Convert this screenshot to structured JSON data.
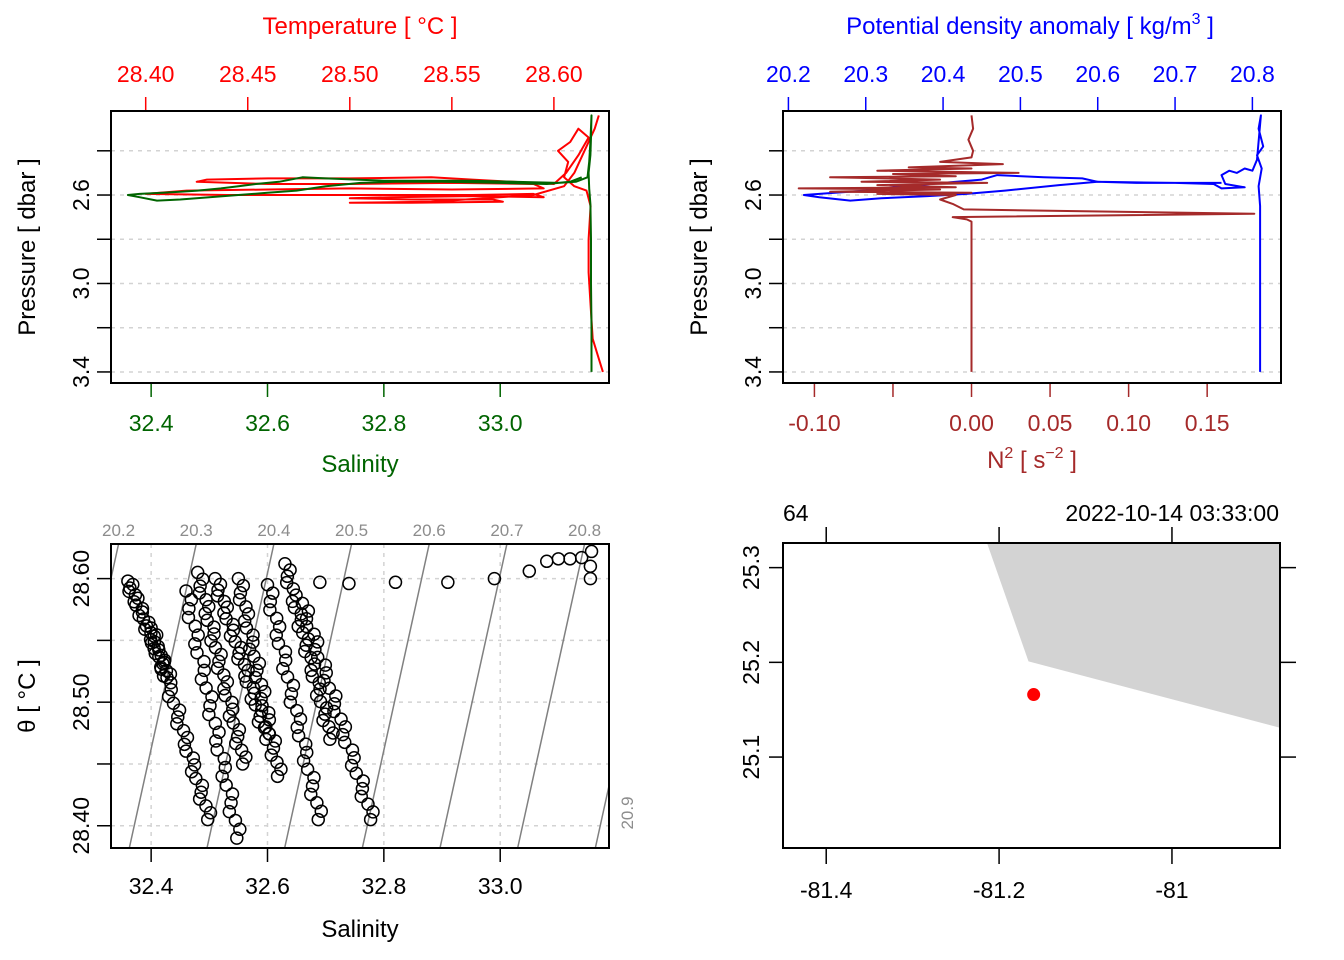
{
  "chart_data": [
    {
      "id": "profile-ts",
      "type": "line",
      "title": "",
      "ylabel": "Pressure [ dbar ]",
      "ylim": [
        3.45,
        2.22
      ],
      "y_ticks": [
        2.4,
        2.6,
        2.8,
        3.0,
        3.2,
        3.4
      ],
      "y_tick_labels": [
        "",
        "2.6",
        "",
        "3.0",
        "",
        "3.4"
      ],
      "grid": true,
      "top_axis": {
        "label": "Temperature [ °C ]",
        "color": "#ff0000",
        "lim": [
          28.383,
          28.627
        ],
        "ticks": [
          28.4,
          28.45,
          28.5,
          28.55,
          28.6
        ],
        "tick_labels": [
          "28.40",
          "28.45",
          "28.50",
          "28.55",
          "28.60"
        ]
      },
      "bottom_axis": {
        "label": "Salinity",
        "color": "#006400",
        "lim": [
          32.331,
          33.187
        ],
        "ticks": [
          32.4,
          32.6,
          32.8,
          33.0
        ],
        "tick_labels": [
          "32.4",
          "32.6",
          "32.8",
          "33.0"
        ]
      },
      "series": [
        {
          "name": "Temperature",
          "axis": "top",
          "color": "#ff0000",
          "points": [
            [
              28.624,
              3.4
            ],
            [
              28.622,
              3.34
            ],
            [
              28.619,
              3.25
            ],
            [
              28.618,
              3.1
            ],
            [
              28.617,
              2.95
            ],
            [
              28.617,
              2.8
            ],
            [
              28.618,
              2.65
            ],
            [
              28.616,
              2.58
            ],
            [
              28.61,
              2.56
            ],
            [
              28.605,
              2.52
            ],
            [
              28.607,
              2.45
            ],
            [
              28.602,
              2.4
            ],
            [
              28.608,
              2.36
            ],
            [
              28.612,
              2.3
            ],
            [
              28.617,
              2.34
            ],
            [
              28.612,
              2.42
            ],
            [
              28.606,
              2.5
            ],
            [
              28.6,
              2.55
            ],
            [
              28.58,
              2.54
            ],
            [
              28.56,
              2.53
            ],
            [
              28.54,
              2.52
            ],
            [
              28.5,
              2.525
            ],
            [
              28.46,
              2.525
            ],
            [
              28.43,
              2.53
            ],
            [
              28.425,
              2.54
            ],
            [
              28.46,
              2.55
            ],
            [
              28.5,
              2.55
            ],
            [
              28.55,
              2.545
            ],
            [
              28.59,
              2.55
            ],
            [
              28.595,
              2.57
            ],
            [
              28.55,
              2.575
            ],
            [
              28.5,
              2.57
            ],
            [
              28.46,
              2.575
            ],
            [
              28.42,
              2.58
            ],
            [
              28.4,
              2.595
            ],
            [
              28.44,
              2.6
            ],
            [
              28.5,
              2.6
            ],
            [
              28.56,
              2.6
            ],
            [
              28.59,
              2.595
            ],
            [
              28.595,
              2.61
            ],
            [
              28.56,
              2.605
            ],
            [
              28.52,
              2.61
            ],
            [
              28.5,
              2.615
            ],
            [
              28.53,
              2.62
            ],
            [
              28.57,
              2.62
            ],
            [
              28.575,
              2.63
            ],
            [
              28.53,
              2.635
            ],
            [
              28.5,
              2.635
            ],
            [
              28.54,
              2.63
            ],
            [
              28.59,
              2.6
            ],
            [
              28.605,
              2.56
            ],
            [
              28.61,
              2.5
            ],
            [
              28.615,
              2.4
            ],
            [
              28.62,
              2.3
            ],
            [
              28.622,
              2.24
            ]
          ]
        },
        {
          "name": "Salinity",
          "axis": "bottom",
          "color": "#006400",
          "points": [
            [
              33.157,
              3.4
            ],
            [
              33.157,
              3.2
            ],
            [
              33.156,
              3.0
            ],
            [
              33.156,
              2.8
            ],
            [
              33.155,
              2.64
            ],
            [
              33.153,
              2.57
            ],
            [
              33.152,
              2.5
            ],
            [
              33.155,
              2.42
            ],
            [
              33.156,
              2.34
            ],
            [
              33.157,
              2.24
            ],
            [
              33.155,
              2.36
            ],
            [
              33.153,
              2.45
            ],
            [
              33.15,
              2.52
            ],
            [
              33.13,
              2.54
            ],
            [
              33.1,
              2.545
            ],
            [
              32.95,
              2.535
            ],
            [
              32.8,
              2.535
            ],
            [
              32.7,
              2.525
            ],
            [
              32.66,
              2.52
            ],
            [
              32.62,
              2.54
            ],
            [
              32.58,
              2.55
            ],
            [
              32.55,
              2.56
            ],
            [
              32.52,
              2.57
            ],
            [
              32.48,
              2.58
            ],
            [
              32.45,
              2.585
            ],
            [
              32.42,
              2.59
            ],
            [
              32.38,
              2.595
            ],
            [
              32.36,
              2.6
            ],
            [
              32.38,
              2.61
            ],
            [
              32.41,
              2.625
            ],
            [
              32.45,
              2.62
            ],
            [
              32.5,
              2.61
            ],
            [
              32.55,
              2.6
            ],
            [
              32.6,
              2.59
            ],
            [
              32.65,
              2.58
            ],
            [
              32.7,
              2.56
            ],
            [
              32.76,
              2.545
            ],
            [
              32.82,
              2.54
            ],
            [
              32.9,
              2.54
            ],
            [
              33.0,
              2.545
            ],
            [
              33.08,
              2.55
            ],
            [
              33.12,
              2.54
            ],
            [
              33.14,
              2.52
            ]
          ]
        }
      ]
    },
    {
      "id": "profile-density-n2",
      "type": "line",
      "title": "",
      "ylabel": "Pressure [ dbar ]",
      "ylim": [
        3.45,
        2.22
      ],
      "y_ticks": [
        2.4,
        2.6,
        2.8,
        3.0,
        3.2,
        3.4
      ],
      "y_tick_labels": [
        "",
        "2.6",
        "",
        "3.0",
        "",
        "3.4"
      ],
      "grid": true,
      "top_axis": {
        "label": "Potential density anomaly [ kg/m",
        "label_sup": "3",
        "label_end": " ]",
        "color": "#0000ff",
        "lim": [
          20.193,
          20.837
        ],
        "ticks": [
          20.2,
          20.3,
          20.4,
          20.5,
          20.6,
          20.7,
          20.8
        ],
        "tick_labels": [
          "20.2",
          "20.3",
          "20.4",
          "20.5",
          "20.6",
          "20.7",
          "20.8"
        ]
      },
      "bottom_axis": {
        "label": "N",
        "label_sup": "2",
        "label_mid": " [ s",
        "label_sup2": "−2",
        "label_end": " ]",
        "color": "#a52a2a",
        "lim": [
          -0.12,
          0.197
        ],
        "ticks": [
          -0.1,
          -0.05,
          0.0,
          0.05,
          0.1,
          0.15
        ],
        "tick_labels": [
          "-0.10",
          "",
          "0.00",
          "0.05",
          "0.10",
          "0.15"
        ]
      },
      "series": [
        {
          "name": "Potential density anomaly",
          "axis": "top",
          "color": "#0000ff",
          "points": [
            [
              20.81,
              3.4
            ],
            [
              20.81,
              3.2
            ],
            [
              20.81,
              3.0
            ],
            [
              20.81,
              2.8
            ],
            [
              20.81,
              2.65
            ],
            [
              20.808,
              2.56
            ],
            [
              20.812,
              2.48
            ],
            [
              20.806,
              2.42
            ],
            [
              20.814,
              2.38
            ],
            [
              20.808,
              2.3
            ],
            [
              20.811,
              2.24
            ],
            [
              20.806,
              2.44
            ],
            [
              20.8,
              2.49
            ],
            [
              20.79,
              2.48
            ],
            [
              20.78,
              2.5
            ],
            [
              20.77,
              2.49
            ],
            [
              20.76,
              2.51
            ],
            [
              20.765,
              2.55
            ],
            [
              20.79,
              2.565
            ],
            [
              20.76,
              2.57
            ],
            [
              20.75,
              2.55
            ],
            [
              20.7,
              2.545
            ],
            [
              20.6,
              2.54
            ],
            [
              20.58,
              2.525
            ],
            [
              20.53,
              2.52
            ],
            [
              20.47,
              2.51
            ],
            [
              20.45,
              2.53
            ],
            [
              20.4,
              2.545
            ],
            [
              20.35,
              2.56
            ],
            [
              20.3,
              2.58
            ],
            [
              20.26,
              2.59
            ],
            [
              20.22,
              2.6
            ],
            [
              20.24,
              2.61
            ],
            [
              20.28,
              2.625
            ],
            [
              20.32,
              2.615
            ],
            [
              20.38,
              2.605
            ],
            [
              20.43,
              2.595
            ],
            [
              20.48,
              2.58
            ],
            [
              20.55,
              2.555
            ],
            [
              20.6,
              2.54
            ],
            [
              20.65,
              2.545
            ],
            [
              20.76,
              2.545
            ]
          ]
        },
        {
          "name": "N2",
          "axis": "bottom",
          "color": "#a52a2a",
          "points": [
            [
              0.0,
              3.4
            ],
            [
              0.0,
              3.2
            ],
            [
              0.0,
              3.0
            ],
            [
              0.0,
              2.8
            ],
            [
              0.0,
              2.72
            ],
            [
              -0.003,
              2.71
            ],
            [
              -0.012,
              2.7
            ],
            [
              0.18,
              2.685
            ],
            [
              -0.005,
              2.665
            ],
            [
              -0.012,
              2.64
            ],
            [
              -0.02,
              2.62
            ],
            [
              -0.01,
              2.6
            ],
            [
              -0.06,
              2.595
            ],
            [
              0.0,
              2.59
            ],
            [
              -0.09,
              2.585
            ],
            [
              -0.02,
              2.575
            ],
            [
              -0.11,
              2.57
            ],
            [
              -0.01,
              2.565
            ],
            [
              -0.06,
              2.555
            ],
            [
              0.01,
              2.545
            ],
            [
              -0.07,
              2.54
            ],
            [
              -0.02,
              2.53
            ],
            [
              -0.09,
              2.52
            ],
            [
              -0.01,
              2.515
            ],
            [
              -0.05,
              2.505
            ],
            [
              0.03,
              2.5
            ],
            [
              -0.06,
              2.49
            ],
            [
              0.0,
              2.48
            ],
            [
              -0.04,
              2.475
            ],
            [
              0.02,
              2.46
            ],
            [
              -0.02,
              2.45
            ],
            [
              0.0,
              2.43
            ],
            [
              0.001,
              2.4
            ],
            [
              -0.002,
              2.35
            ],
            [
              0.001,
              2.3
            ],
            [
              0.0,
              2.24
            ]
          ]
        }
      ]
    },
    {
      "id": "ts-diagram",
      "type": "scatter",
      "title": "",
      "xlabel": "Salinity",
      "ylabel": "θ [ °C ]",
      "xlim": [
        32.331,
        33.187
      ],
      "ylim": [
        28.382,
        28.628
      ],
      "x_ticks": [
        32.4,
        32.6,
        32.8,
        33.0
      ],
      "x_tick_labels": [
        "32.4",
        "32.6",
        "32.8",
        "33.0"
      ],
      "y_ticks": [
        28.4,
        28.45,
        28.5,
        28.55,
        28.6
      ],
      "y_tick_labels": [
        "28.40",
        "",
        "28.50",
        "",
        "28.60"
      ],
      "grid": true,
      "isopycnals": {
        "color": "#808080",
        "levels": [
          20.2,
          20.3,
          20.4,
          20.5,
          20.6,
          20.7,
          20.8,
          20.9
        ],
        "labels": [
          "20.2",
          "20.3",
          "20.4",
          "20.5",
          "20.6",
          "20.7",
          "20.8",
          "20.9"
        ]
      },
      "tracks": [
        {
          "from": [
            32.36,
            28.598
          ],
          "to": [
            32.43,
            28.52
          ]
        },
        {
          "from": [
            32.4,
            28.56
          ],
          "to": [
            32.5,
            28.405
          ]
        },
        {
          "from": [
            32.46,
            28.59
          ],
          "to": [
            32.55,
            28.39
          ]
        },
        {
          "from": [
            32.48,
            28.605
          ],
          "to": [
            32.56,
            28.45
          ]
        },
        {
          "from": [
            32.51,
            28.6
          ],
          "to": [
            32.6,
            28.47
          ]
        },
        {
          "from": [
            32.55,
            28.6
          ],
          "to": [
            32.62,
            28.44
          ]
        },
        {
          "from": [
            32.6,
            28.595
          ],
          "to": [
            32.69,
            28.405
          ]
        },
        {
          "from": [
            32.63,
            28.612
          ],
          "to": [
            32.71,
            28.47
          ]
        },
        {
          "from": [
            32.66,
            28.58
          ],
          "to": [
            32.78,
            28.405
          ]
        }
      ],
      "surface_points": [
        [
          32.69,
          28.597
        ],
        [
          32.74,
          28.596
        ],
        [
          32.82,
          28.597
        ],
        [
          32.91,
          28.597
        ],
        [
          32.99,
          28.6
        ],
        [
          33.05,
          28.606
        ],
        [
          33.08,
          28.614
        ],
        [
          33.1,
          28.616
        ],
        [
          33.12,
          28.616
        ],
        [
          33.14,
          28.617
        ],
        [
          33.155,
          28.61
        ],
        [
          33.155,
          28.6
        ],
        [
          33.157,
          28.622
        ]
      ]
    },
    {
      "id": "station-map",
      "type": "scatter",
      "title": "",
      "top_left_label": "64",
      "top_right_label": "2022-10-14 03:33:00",
      "xlim": [
        -81.45,
        -80.875
      ],
      "ylim": [
        25.004,
        25.326
      ],
      "x_ticks": [
        -81.4,
        -81.2,
        -81.0
      ],
      "x_tick_labels": [
        "-81.4",
        "-81.2",
        "-81"
      ],
      "y_ticks": [
        25.1,
        25.2,
        25.3
      ],
      "y_tick_labels": [
        "25.1",
        "25.2",
        "25.3"
      ],
      "land_color": "#d3d3d3",
      "land_polygon": [
        [
          -81.214,
          25.326
        ],
        [
          -81.166,
          25.201
        ],
        [
          -80.875,
          25.131
        ],
        [
          -80.875,
          25.326
        ]
      ],
      "station": {
        "lon": -81.16,
        "lat": 25.166,
        "color": "#ff0000"
      }
    }
  ]
}
